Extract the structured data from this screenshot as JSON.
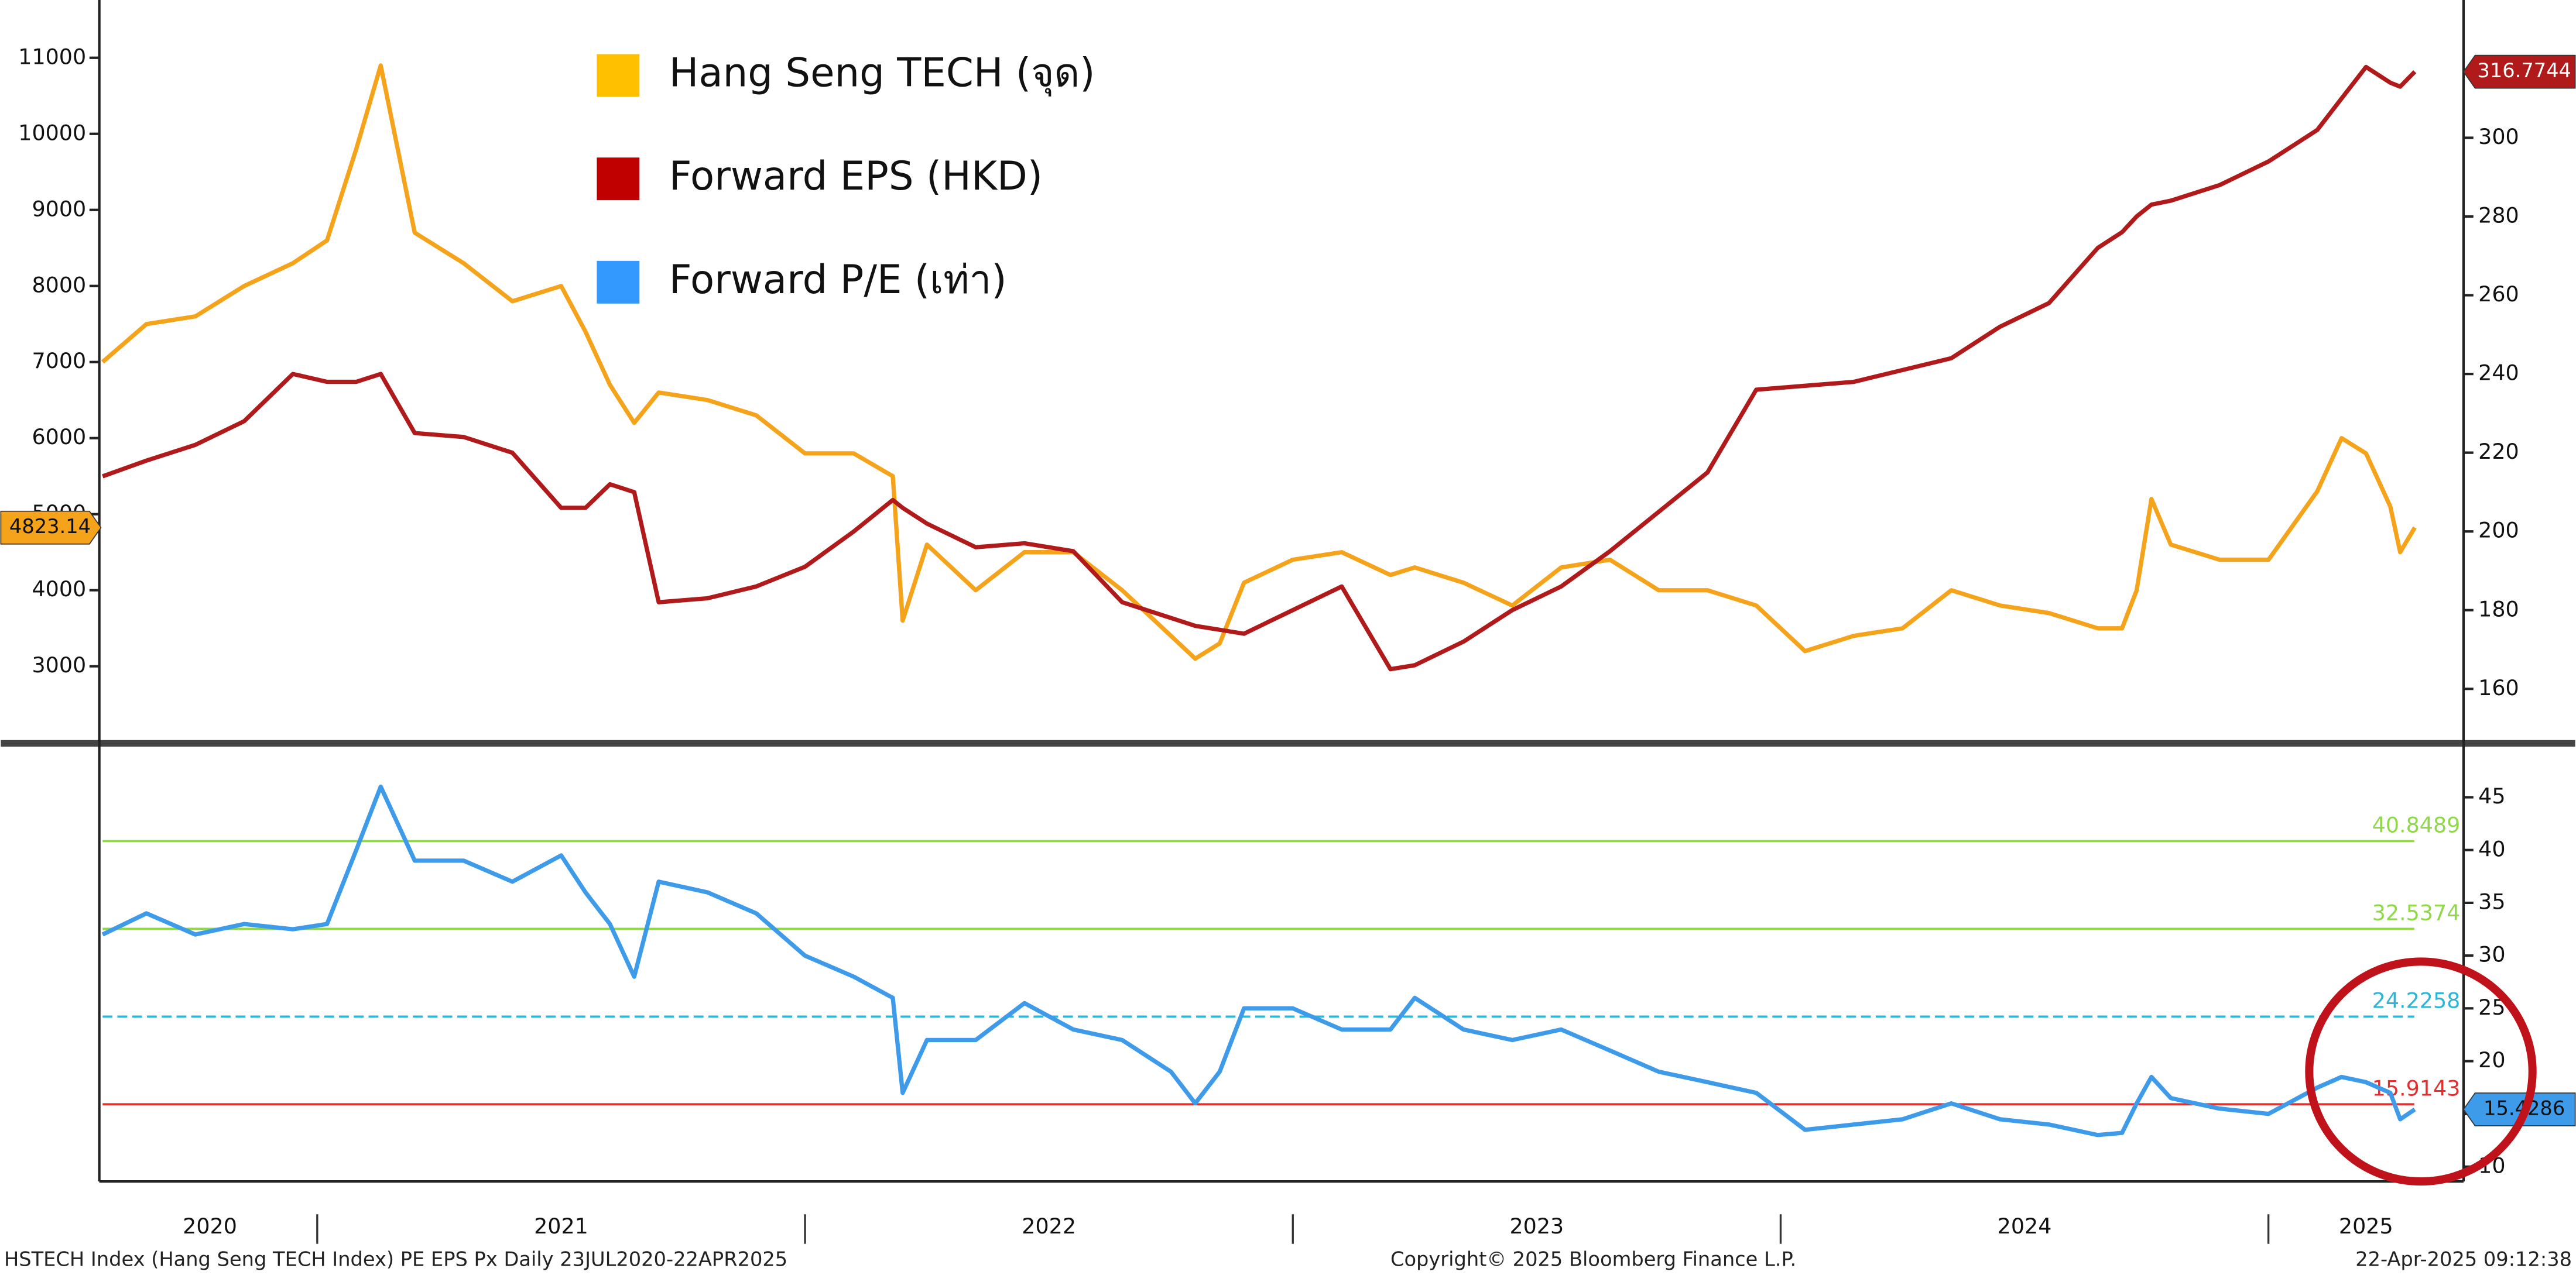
{
  "chart_data": [
    {
      "type": "line",
      "xlim": [
        2020.56,
        2025.4
      ],
      "x": [
        2020.56,
        2020.65,
        2020.75,
        2020.85,
        2020.95,
        2021.02,
        2021.08,
        2021.13,
        2021.2,
        2021.3,
        2021.4,
        2021.5,
        2021.55,
        2021.6,
        2021.65,
        2021.7,
        2021.8,
        2021.9,
        2022.0,
        2022.1,
        2022.18,
        2022.2,
        2022.25,
        2022.35,
        2022.45,
        2022.55,
        2022.65,
        2022.75,
        2022.8,
        2022.85,
        2022.9,
        2023.0,
        2023.1,
        2023.2,
        2023.25,
        2023.35,
        2023.45,
        2023.55,
        2023.65,
        2023.75,
        2023.85,
        2023.95,
        2024.05,
        2024.15,
        2024.25,
        2024.35,
        2024.45,
        2024.55,
        2024.65,
        2024.7,
        2024.73,
        2024.76,
        2024.8,
        2024.9,
        2025.0,
        2025.1,
        2025.15,
        2025.2,
        2025.25,
        2025.27,
        2025.3
      ],
      "ylim": [
        2030,
        11760
      ],
      "yticks": [
        3000,
        4000,
        5000,
        6000,
        7000,
        8000,
        9000,
        10000,
        11000
      ],
      "y2lim": [
        147,
        335
      ],
      "y2ticks": [
        160,
        180,
        200,
        220,
        240,
        260,
        280,
        300
      ],
      "series": [
        {
          "name": "Hang Seng TECH (จุด)",
          "color": "#f5a31a",
          "legend_color": "#ffc000",
          "axis": "y",
          "values": [
            7000,
            7500,
            7600,
            8000,
            8300,
            8600,
            9800,
            10900,
            8700,
            8300,
            7800,
            8000,
            7400,
            6700,
            6200,
            6600,
            6500,
            6300,
            5800,
            5800,
            5500,
            3600,
            4600,
            4000,
            4500,
            4500,
            4000,
            3400,
            3100,
            3300,
            4100,
            4400,
            4500,
            4200,
            4300,
            4100,
            3800,
            4300,
            4400,
            4000,
            4000,
            3800,
            3200,
            3400,
            3500,
            4000,
            3800,
            3700,
            3500,
            3500,
            4000,
            5200,
            4600,
            4400,
            4400,
            5300,
            6000,
            5800,
            5100,
            4500,
            4823.14
          ]
        },
        {
          "name": "Forward EPS (HKD)",
          "color": "#b01a1a",
          "legend_color": "#c00000",
          "axis": "y2",
          "values": [
            214,
            218,
            222,
            228,
            240,
            238,
            238,
            240,
            225,
            224,
            220,
            206,
            206,
            212,
            210,
            182,
            183,
            186,
            191,
            200,
            208,
            206,
            202,
            196,
            197,
            195,
            182,
            178,
            176,
            175,
            174,
            180,
            186,
            165,
            166,
            172,
            180,
            186,
            195,
            205,
            215,
            236,
            237,
            238,
            241,
            244,
            252,
            258,
            272,
            276,
            280,
            283,
            284,
            288,
            294,
            302,
            310,
            318,
            314,
            313,
            316.7744
          ]
        }
      ]
    },
    {
      "type": "line",
      "xlim": [
        2020.56,
        2025.4
      ],
      "x": [
        2020.56,
        2020.65,
        2020.75,
        2020.85,
        2020.95,
        2021.02,
        2021.08,
        2021.13,
        2021.2,
        2021.3,
        2021.4,
        2021.5,
        2021.55,
        2021.6,
        2021.65,
        2021.7,
        2021.8,
        2021.9,
        2022.0,
        2022.1,
        2022.18,
        2022.2,
        2022.25,
        2022.35,
        2022.45,
        2022.55,
        2022.65,
        2022.75,
        2022.8,
        2022.85,
        2022.9,
        2023.0,
        2023.1,
        2023.2,
        2023.25,
        2023.35,
        2023.45,
        2023.55,
        2023.65,
        2023.75,
        2023.85,
        2023.95,
        2024.05,
        2024.15,
        2024.25,
        2024.35,
        2024.45,
        2024.55,
        2024.65,
        2024.7,
        2024.73,
        2024.76,
        2024.8,
        2024.9,
        2025.0,
        2025.1,
        2025.15,
        2025.2,
        2025.25,
        2025.27,
        2025.3
      ],
      "xticks": [
        {
          "value": 2020,
          "label": "2020"
        },
        {
          "value": 2021,
          "label": "2021"
        },
        {
          "value": 2022,
          "label": "2022"
        },
        {
          "value": 2023,
          "label": "2023"
        },
        {
          "value": 2024,
          "label": "2024"
        },
        {
          "value": 2025,
          "label": "2025"
        }
      ],
      "ylim": [
        8.6,
        49.8
      ],
      "yticks": [
        10,
        15,
        20,
        25,
        30,
        35,
        40,
        45
      ],
      "y_axis_side": "right",
      "series": [
        {
          "name": "Forward P/E (เท่า)",
          "color": "#3d9be9",
          "legend_color": "#3399ff",
          "axis": "y",
          "values": [
            32,
            34,
            32,
            33,
            32.5,
            33,
            40,
            46,
            39,
            39,
            37,
            39.5,
            36,
            33,
            28,
            37,
            36,
            34,
            30,
            28,
            26,
            17,
            22,
            22,
            25.5,
            23,
            22,
            19,
            16,
            19,
            25,
            25,
            23,
            23,
            26,
            23,
            22,
            23,
            21,
            19,
            18,
            17,
            13.5,
            14,
            14.5,
            16,
            14.5,
            14,
            13,
            13.2,
            16,
            18.5,
            16.5,
            15.5,
            15,
            17.5,
            18.5,
            18,
            17,
            14.5,
            15.4286
          ]
        }
      ],
      "reference_lines": [
        {
          "value": 40.8489,
          "color": "#8ed84a",
          "style": "solid"
        },
        {
          "value": 32.5374,
          "color": "#8ed84a",
          "style": "solid"
        },
        {
          "value": 24.2258,
          "color": "#2bb6d8",
          "style": "dashed"
        },
        {
          "value": 15.9143,
          "color": "#e03030",
          "style": "solid"
        }
      ]
    }
  ],
  "footer": {
    "left": "HSTECH Index (Hang Seng TECH Index) PE EPS Px  Daily 23JUL2020-22APR2025",
    "center": "Copyright© 2025 Bloomberg Finance L.P.",
    "right": "22-Apr-2025 09:12:38"
  }
}
